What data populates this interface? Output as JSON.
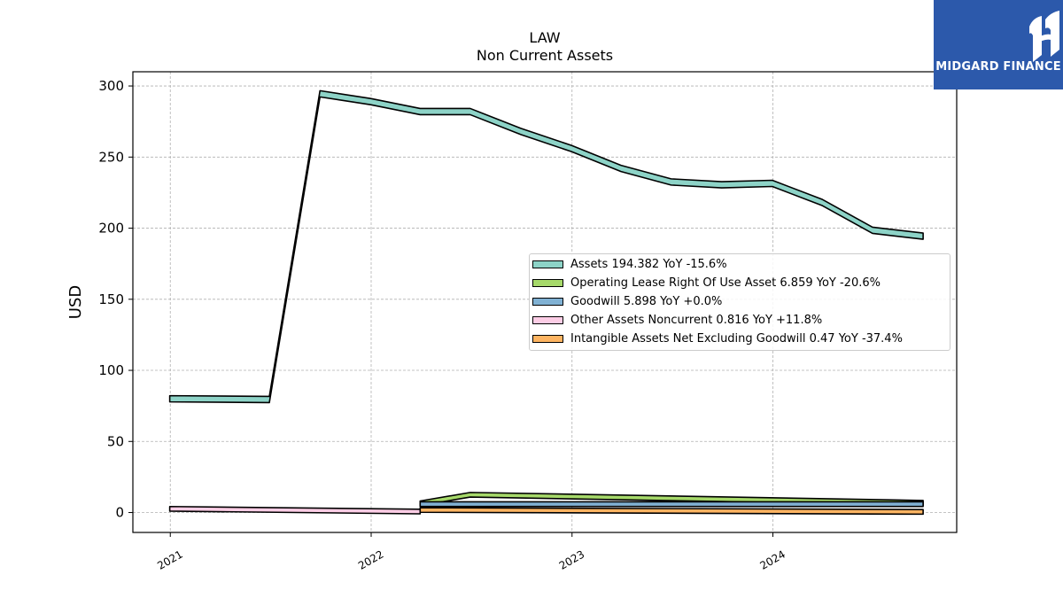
{
  "logo": {
    "text": "MIDGARD FINANCE",
    "name": "midgard-finance-logo"
  },
  "chart_data": {
    "type": "area",
    "title": "LAW",
    "subtitle": "Non Current  Assets",
    "ylabel": "USD",
    "xlabel": "",
    "ylim": [
      -14,
      310
    ],
    "xlim": [
      "2020-10-25",
      "2024-11-30"
    ],
    "yticks": [
      0,
      50,
      100,
      150,
      200,
      250,
      300
    ],
    "xticks": [
      "2021",
      "2022",
      "2023",
      "2024"
    ],
    "grid": true,
    "legend_position": "center-right",
    "series": [
      {
        "name": "Assets",
        "legend": "Assets  194.382 YoY -15.6%",
        "color": "#8dd3c7",
        "x": [
          "2020-12-31",
          "2021-06-30",
          "2021-09-30",
          "2021-12-31",
          "2022-03-31",
          "2022-06-30",
          "2022-09-30",
          "2022-12-31",
          "2023-03-31",
          "2023-06-30",
          "2023-09-30",
          "2023-12-31",
          "2024-03-31",
          "2024-06-30",
          "2024-09-30"
        ],
        "values": [
          80,
          79.5,
          294.5,
          289,
          282,
          282,
          268,
          256,
          242,
          232.5,
          230.5,
          231.5,
          218,
          198.5,
          194.4
        ]
      },
      {
        "name": "Operating Lease Right Of Use Asset",
        "legend": "Operating Lease Right Of Use Asset  6.859 YoY -20.6%",
        "color": "#a6d96a",
        "x": [
          "2022-03-31",
          "2022-06-30",
          "2024-09-30"
        ],
        "values": [
          6.5,
          12.5,
          6.859
        ]
      },
      {
        "name": "Goodwill",
        "legend": "Goodwill  5.898 YoY +0.0%",
        "color": "#80b1d3",
        "x": [
          "2022-03-31",
          "2024-09-30"
        ],
        "values": [
          5.898,
          5.898
        ]
      },
      {
        "name": "Other Assets Noncurrent",
        "legend": "Other Assets Noncurrent  0.816 YoY +11.8%",
        "color": "#fccde5",
        "x": [
          "2020-12-31",
          "2022-03-31"
        ],
        "values": [
          2.6,
          0.7
        ]
      },
      {
        "name": "Intangible Assets Net Excluding Goodwill",
        "legend": "Intangible Assets Net Excluding Goodwill  0.47 YoY -37.4%",
        "color": "#fdb462",
        "x": [
          "2022-03-31",
          "2024-09-30"
        ],
        "values": [
          1.8,
          0.47
        ]
      }
    ]
  }
}
